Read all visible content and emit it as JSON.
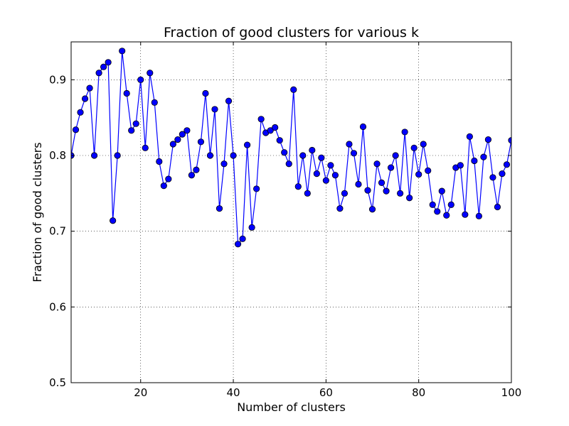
{
  "chart_data": {
    "type": "line",
    "title": "Fraction of good clusters for various k",
    "xlabel": "Number of clusters",
    "ylabel": "Fraction of good clusters",
    "xlim": [
      5,
      100
    ],
    "ylim": [
      0.5,
      0.95
    ],
    "grid": true,
    "xticks": [
      20,
      40,
      60,
      80,
      100
    ],
    "yticks": [
      0.5,
      0.6,
      0.7,
      0.8,
      0.9
    ],
    "xtick_labels": [
      "20",
      "40",
      "60",
      "80",
      "100"
    ],
    "ytick_labels": [
      "0.5",
      "0.6",
      "0.7",
      "0.8",
      "0.9"
    ],
    "series": [
      {
        "color": "#0000ff",
        "marker": "circle",
        "x": [
          5,
          6,
          7,
          8,
          9,
          10,
          11,
          12,
          13,
          14,
          15,
          16,
          17,
          18,
          19,
          20,
          21,
          22,
          23,
          24,
          25,
          26,
          27,
          28,
          29,
          30,
          31,
          32,
          33,
          34,
          35,
          36,
          37,
          38,
          39,
          40,
          41,
          42,
          43,
          44,
          45,
          46,
          47,
          48,
          49,
          50,
          51,
          52,
          53,
          54,
          55,
          56,
          57,
          58,
          59,
          60,
          61,
          62,
          63,
          64,
          65,
          66,
          67,
          68,
          69,
          70,
          71,
          72,
          73,
          74,
          75,
          76,
          77,
          78,
          79,
          80,
          81,
          82,
          83,
          84,
          85,
          86,
          87,
          88,
          89,
          90,
          91,
          92,
          93,
          94,
          95,
          96,
          97,
          98,
          99,
          100
        ],
        "y": [
          0.8,
          0.834,
          0.857,
          0.875,
          0.889,
          0.8,
          0.909,
          0.917,
          0.923,
          0.714,
          0.8,
          0.938,
          0.882,
          0.833,
          0.842,
          0.9,
          0.81,
          0.909,
          0.87,
          0.792,
          0.76,
          0.769,
          0.815,
          0.821,
          0.828,
          0.833,
          0.774,
          0.781,
          0.818,
          0.882,
          0.8,
          0.861,
          0.73,
          0.789,
          0.872,
          0.8,
          0.683,
          0.69,
          0.814,
          0.705,
          0.756,
          0.848,
          0.83,
          0.833,
          0.837,
          0.82,
          0.804,
          0.789,
          0.887,
          0.759,
          0.8,
          0.75,
          0.807,
          0.776,
          0.797,
          0.767,
          0.787,
          0.774,
          0.73,
          0.75,
          0.815,
          0.803,
          0.762,
          0.838,
          0.754,
          0.729,
          0.789,
          0.764,
          0.753,
          0.784,
          0.8,
          0.75,
          0.831,
          0.744,
          0.81,
          0.775,
          0.815,
          0.78,
          0.735,
          0.726,
          0.753,
          0.721,
          0.735,
          0.784,
          0.787,
          0.722,
          0.825,
          0.793,
          0.72,
          0.798,
          0.821,
          0.771,
          0.732,
          0.776,
          0.788,
          0.82
        ]
      }
    ]
  }
}
